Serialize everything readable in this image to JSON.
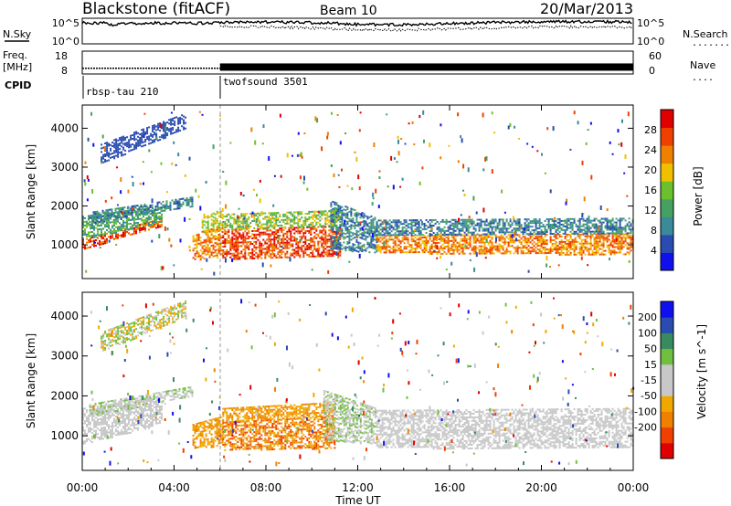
{
  "header": {
    "station": "Blackstone (fitACF)",
    "beam": "Beam 10",
    "date": "20/Mar/2013"
  },
  "side_labels": {
    "nsky": "N.Sky",
    "freq_line1": "Freq.",
    "freq_line2": "[MHz]",
    "cpid": "CPID",
    "nsearch": "N.Search",
    "nave": "Nave",
    "nsearch_leader": "........",
    "nave_leader": "...."
  },
  "cpid_segments": [
    {
      "label": "rbsp-tau 210",
      "start_hour": 0
    },
    {
      "label": "twofsound 3501",
      "start_hour": 6
    }
  ],
  "colors": {
    "power": [
      "#1010ee",
      "#2a4bb0",
      "#3a8a9a",
      "#46a062",
      "#6cc02e",
      "#f0c000",
      "#f08000",
      "#f04000",
      "#e00000"
    ],
    "velocity": [
      "#e00000",
      "#f04000",
      "#f08000",
      "#f0a800",
      "#c8c8c8",
      "#c8c8c8",
      "#70c040",
      "#3a8a60",
      "#2a4bb0",
      "#1010ee"
    ],
    "sky_line": "#000000"
  },
  "chart_data": [
    {
      "type": "line",
      "panel": "noise",
      "x": [
        0,
        1,
        1.2,
        2,
        3,
        4,
        5,
        6,
        7,
        8,
        9,
        10,
        11,
        12,
        13,
        14,
        15,
        16,
        17,
        18,
        19,
        20,
        21,
        22,
        23,
        24
      ],
      "series": [
        {
          "name": "N.Sky",
          "values": [
            4.4,
            4.3,
            3.9,
            4.25,
            4.3,
            4.35,
            4.25,
            4.45,
            4.6,
            4.55,
            4.5,
            4.4,
            4.3,
            4.0,
            3.95,
            3.95,
            4.0,
            4.2,
            4.35,
            4.45,
            4.55,
            4.6,
            4.65,
            4.6,
            4.6,
            4.55
          ]
        },
        {
          "name": "N.Search",
          "values": [
            null,
            null,
            null,
            null,
            null,
            null,
            null,
            3.6,
            3.5,
            3.45,
            3.3,
            3.2,
            3.0,
            2.8,
            2.7,
            2.7,
            2.9,
            3.0,
            3.1,
            3.2,
            3.4,
            3.5,
            3.5,
            3.4,
            3.4,
            3.3
          ]
        }
      ],
      "ytick_labels": [
        "10^5",
        "10^0"
      ],
      "ylim": [
        0,
        5
      ],
      "xlim": [
        0,
        24
      ]
    },
    {
      "type": "line",
      "panel": "frequency",
      "x": [
        0,
        6,
        6,
        24
      ],
      "series": [
        {
          "name": "Freq.",
          "values": [
            10.0,
            10.0,
            11.6,
            11.6
          ]
        }
      ],
      "ylim": [
        8,
        18
      ],
      "yticks": [
        8,
        18
      ],
      "ylim_right": [
        0,
        60
      ],
      "yticks_right": [
        0,
        60
      ],
      "xlim": [
        0,
        24
      ]
    },
    {
      "type": "heatmap",
      "panel": "power",
      "ylabel": "Slant Range [km]",
      "xlim": [
        0,
        24
      ],
      "ylim": [
        180,
        4550
      ],
      "yticks": [
        1000,
        2000,
        3000,
        4000
      ],
      "colorbar": {
        "label": "Power [dB]",
        "ticks": [
          4,
          8,
          12,
          16,
          20,
          24,
          28
        ],
        "range": [
          0,
          32
        ]
      },
      "bands": [
        {
          "x0": 0,
          "x1": 3.5,
          "ylo0": 900,
          "ylo1": 1500,
          "yhi0": 1150,
          "yhi1": 1700,
          "c": [
            7,
            8,
            6
          ]
        },
        {
          "x0": 0,
          "x1": 3.5,
          "ylo0": 1150,
          "ylo1": 1600,
          "yhi0": 1750,
          "yhi1": 2000,
          "c": [
            4,
            3,
            2
          ]
        },
        {
          "x0": 0.3,
          "x1": 4.8,
          "ylo0": 1550,
          "ylo1": 2000,
          "yhi0": 1850,
          "yhi1": 2250,
          "c": [
            1,
            2,
            3
          ]
        },
        {
          "x0": 0.8,
          "x1": 4.5,
          "ylo0": 3100,
          "ylo1": 4000,
          "yhi0": 3600,
          "yhi1": 4400,
          "c": [
            1
          ]
        },
        {
          "x0": 4.8,
          "x1": 6.1,
          "ylo0": 600,
          "ylo1": 750,
          "yhi0": 1300,
          "yhi1": 1500,
          "c": [
            6,
            7,
            5
          ]
        },
        {
          "x0": 5.2,
          "x1": 6.1,
          "ylo0": 1300,
          "ylo1": 1500,
          "yhi0": 1700,
          "yhi1": 1950,
          "c": [
            5,
            4
          ]
        },
        {
          "x0": 6.1,
          "x1": 11.2,
          "ylo0": 650,
          "ylo1": 700,
          "yhi0": 1400,
          "yhi1": 1500,
          "c": [
            7,
            8,
            6
          ]
        },
        {
          "x0": 6.1,
          "x1": 11.2,
          "ylo0": 1400,
          "ylo1": 1500,
          "yhi0": 1800,
          "yhi1": 1900,
          "c": [
            4,
            5,
            3
          ]
        },
        {
          "x0": 10.8,
          "x1": 12.8,
          "ylo0": 900,
          "ylo1": 800,
          "yhi0": 2150,
          "yhi1": 1700,
          "c": [
            2,
            3,
            1
          ]
        },
        {
          "x0": 12.8,
          "x1": 24,
          "ylo0": 800,
          "ylo1": 750,
          "yhi0": 1250,
          "yhi1": 1300,
          "c": [
            7,
            6,
            5
          ]
        },
        {
          "x0": 12.8,
          "x1": 24,
          "ylo0": 1250,
          "ylo1": 1300,
          "yhi0": 1650,
          "yhi1": 1700,
          "c": [
            3,
            2,
            1
          ]
        }
      ]
    },
    {
      "type": "heatmap",
      "panel": "velocity",
      "ylabel": "Slant Range [km]",
      "xlabel": "Time UT",
      "xlim": [
        0,
        24
      ],
      "ylim": [
        180,
        4550
      ],
      "yticks": [
        1000,
        2000,
        3000,
        4000
      ],
      "xticks": [
        "00:00",
        "04:00",
        "08:00",
        "12:00",
        "16:00",
        "20:00",
        "00:00"
      ],
      "colorbar": {
        "label": "Velocity [m s^-1]",
        "ticks": [
          200,
          100,
          50,
          15,
          -15,
          -50,
          -100,
          -200
        ]
      },
      "bands": [
        {
          "x0": 0,
          "x1": 3.5,
          "ylo0": 800,
          "ylo1": 1300,
          "yhi0": 1700,
          "yhi1": 2000,
          "c": [
            4,
            5
          ]
        },
        {
          "x0": 0.3,
          "x1": 4.8,
          "ylo0": 1500,
          "ylo1": 2000,
          "yhi0": 1800,
          "yhi1": 2250,
          "c": [
            4,
            5,
            6
          ]
        },
        {
          "x0": 0.8,
          "x1": 4.5,
          "ylo0": 3100,
          "ylo1": 4000,
          "yhi0": 3600,
          "yhi1": 4400,
          "c": [
            5,
            6,
            3
          ]
        },
        {
          "x0": 4.8,
          "x1": 6.1,
          "ylo0": 700,
          "ylo1": 750,
          "yhi0": 1300,
          "yhi1": 1500,
          "c": [
            2,
            3
          ]
        },
        {
          "x0": 6.1,
          "x1": 11.0,
          "ylo0": 650,
          "ylo1": 700,
          "yhi0": 1350,
          "yhi1": 1500,
          "c": [
            2,
            3,
            1
          ]
        },
        {
          "x0": 6.1,
          "x1": 11.0,
          "ylo0": 1350,
          "ylo1": 1500,
          "yhi0": 1700,
          "yhi1": 1850,
          "c": [
            3,
            2
          ]
        },
        {
          "x0": 10.5,
          "x1": 12.8,
          "ylo0": 900,
          "ylo1": 800,
          "yhi0": 2150,
          "yhi1": 1700,
          "c": [
            6,
            4,
            5
          ]
        },
        {
          "x0": 12.8,
          "x1": 24,
          "ylo0": 700,
          "ylo1": 700,
          "yhi0": 1650,
          "yhi1": 1700,
          "c": [
            4,
            5,
            4
          ]
        }
      ]
    }
  ]
}
